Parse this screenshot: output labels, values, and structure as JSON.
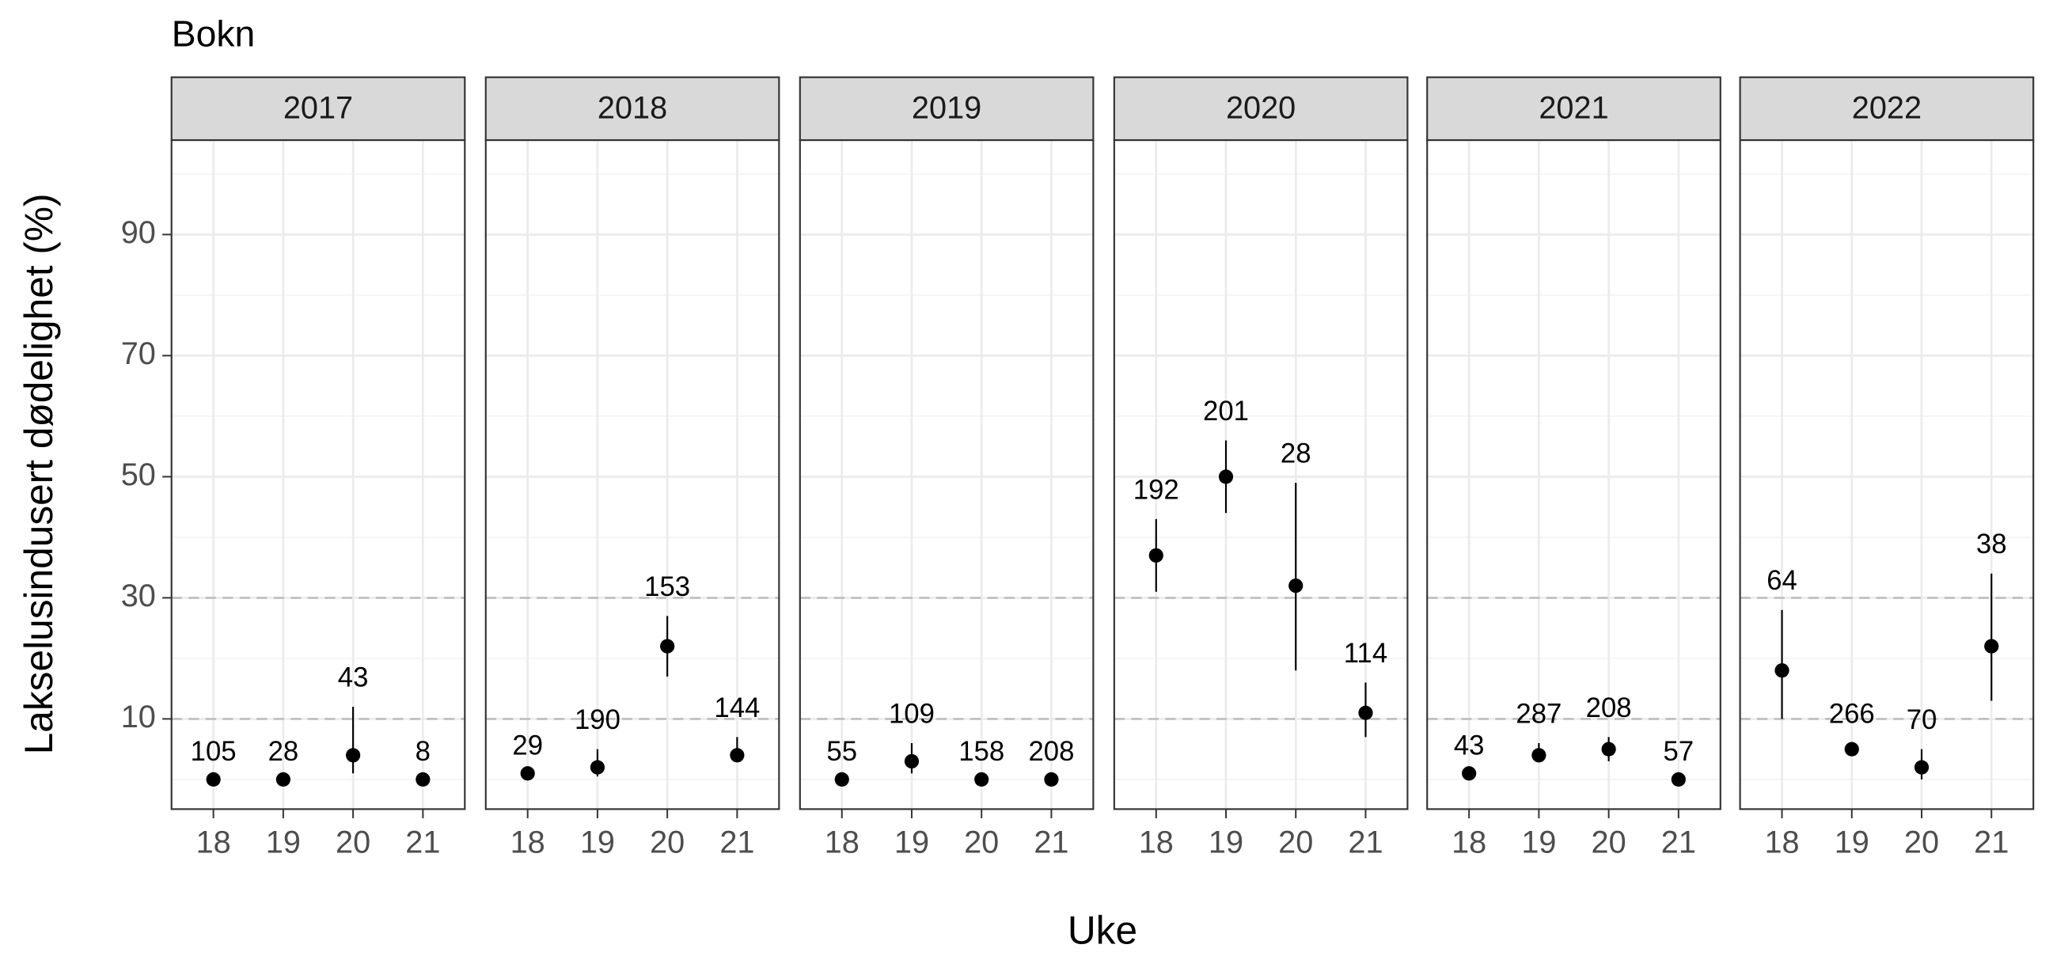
{
  "title": "Bokn",
  "xlabel": "Uke",
  "ylabel": "Lakselusindusert dødelighet (%)",
  "ylim": [
    -4.9,
    105.6
  ],
  "yticks": [
    10,
    30,
    50,
    70,
    90
  ],
  "minor_yticks": [
    0,
    20,
    40,
    60,
    80,
    100
  ],
  "hlines": [
    10,
    30
  ],
  "grid": true,
  "chart_data": [
    {
      "type": "errorbar",
      "title": "2017",
      "categories": [
        "18",
        "19",
        "20",
        "21"
      ],
      "values": [
        0,
        0,
        4,
        0
      ],
      "lower": [
        null,
        null,
        1,
        null
      ],
      "upper": [
        null,
        null,
        12,
        null
      ],
      "n": [
        105,
        28,
        43,
        8
      ],
      "color": "#000000"
    },
    {
      "type": "errorbar",
      "title": "2018",
      "categories": [
        "18",
        "19",
        "20",
        "21"
      ],
      "values": [
        1,
        2,
        22,
        4
      ],
      "lower": [
        null,
        0.5,
        17,
        3
      ],
      "upper": [
        null,
        5,
        27,
        7
      ],
      "n": [
        29,
        190,
        153,
        144
      ],
      "color": "#000000"
    },
    {
      "type": "errorbar",
      "title": "2019",
      "categories": [
        "18",
        "19",
        "20",
        "21"
      ],
      "values": [
        0,
        3,
        0,
        0
      ],
      "lower": [
        null,
        1,
        null,
        null
      ],
      "upper": [
        null,
        6,
        null,
        null
      ],
      "n": [
        55,
        109,
        158,
        208
      ],
      "color": "#000000"
    },
    {
      "type": "errorbar",
      "title": "2020",
      "categories": [
        "18",
        "19",
        "20",
        "21"
      ],
      "values": [
        37,
        50,
        32,
        11
      ],
      "lower": [
        31,
        44,
        18,
        7
      ],
      "upper": [
        43,
        56,
        49,
        16
      ],
      "n": [
        192,
        201,
        28,
        114
      ],
      "color": "#000000"
    },
    {
      "type": "errorbar",
      "title": "2021",
      "categories": [
        "18",
        "19",
        "20",
        "21"
      ],
      "values": [
        1,
        4,
        5,
        0
      ],
      "lower": [
        null,
        3,
        3,
        null
      ],
      "upper": [
        null,
        6,
        7,
        null
      ],
      "n": [
        43,
        287,
        208,
        57
      ],
      "color": "#000000"
    },
    {
      "type": "errorbar",
      "title": "2022",
      "categories": [
        "18",
        "19",
        "20",
        "21"
      ],
      "values": [
        18,
        5,
        2,
        22
      ],
      "lower": [
        10,
        4,
        0,
        13
      ],
      "upper": [
        28,
        6,
        5,
        34
      ],
      "n": [
        64,
        266,
        70,
        38
      ],
      "color": "#000000"
    }
  ]
}
